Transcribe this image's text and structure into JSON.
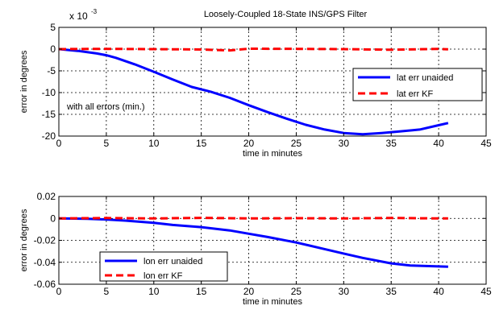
{
  "chart_data": [
    {
      "type": "line",
      "title": "Loosely-Coupled 18-State INS/GPS Filter",
      "xlabel": "time in minutes",
      "ylabel": "error in degrees",
      "scale_label": "x 10",
      "scale_exponent": "-3",
      "annotation": "with all errors (min.)",
      "xlim": [
        0,
        45
      ],
      "ylim": [
        -20,
        5
      ],
      "xticks": [
        "0",
        "5",
        "10",
        "15",
        "20",
        "25",
        "30",
        "35",
        "40",
        "45"
      ],
      "yticks": [
        "5",
        "0",
        "-5",
        "-10",
        "-15",
        "-20"
      ],
      "grid": true,
      "legend_position": "right",
      "series": [
        {
          "name": "lat err unaided",
          "color": "#0000ff",
          "style": "solid",
          "x": [
            0,
            2,
            4,
            5,
            6,
            8,
            10,
            12,
            14,
            16,
            18,
            20,
            22,
            24,
            26,
            28,
            30,
            32,
            34,
            36,
            38,
            40,
            41
          ],
          "y": [
            0,
            -0.4,
            -1.0,
            -1.4,
            -2.0,
            -3.5,
            -5.2,
            -7.0,
            -8.7,
            -9.8,
            -11.2,
            -12.9,
            -14.5,
            -16.0,
            -17.4,
            -18.5,
            -19.3,
            -19.6,
            -19.3,
            -18.9,
            -18.5,
            -17.5,
            -17.0
          ]
        },
        {
          "name": "lat err KF",
          "color": "#ff0000",
          "style": "dashed",
          "x": [
            0,
            5,
            10,
            15,
            18,
            20,
            25,
            30,
            35,
            40,
            41
          ],
          "y": [
            0,
            0.05,
            0,
            -0.1,
            -0.3,
            0.1,
            0.05,
            0,
            -0.15,
            0.05,
            -0.05
          ]
        }
      ]
    },
    {
      "type": "line",
      "title": "",
      "xlabel": "time in minutes",
      "ylabel": "error in degrees",
      "xlim": [
        0,
        45
      ],
      "ylim": [
        -0.06,
        0.02
      ],
      "xticks": [
        "0",
        "5",
        "10",
        "15",
        "20",
        "25",
        "30",
        "35",
        "40",
        "45"
      ],
      "yticks": [
        "0.02",
        "0",
        "-0.02",
        "-0.04",
        "-0.06"
      ],
      "grid": true,
      "legend_position": "bottom-left",
      "series": [
        {
          "name": "lon err unaided",
          "color": "#0000ff",
          "style": "solid",
          "x": [
            0,
            3,
            5,
            7,
            10,
            12,
            15,
            18,
            20,
            22,
            25,
            28,
            30,
            32,
            35,
            37,
            39,
            41
          ],
          "y": [
            0,
            -0.0003,
            -0.001,
            -0.002,
            -0.004,
            -0.006,
            -0.008,
            -0.011,
            -0.014,
            -0.017,
            -0.022,
            -0.028,
            -0.032,
            -0.036,
            -0.041,
            -0.043,
            -0.0435,
            -0.044
          ]
        },
        {
          "name": "lon err KF",
          "color": "#ff0000",
          "style": "dashed",
          "x": [
            0,
            5,
            10,
            15,
            20,
            25,
            30,
            35,
            40,
            41
          ],
          "y": [
            0,
            0.0003,
            0,
            0.0005,
            0,
            0.0002,
            0,
            0.0004,
            0,
            0
          ]
        }
      ]
    }
  ]
}
